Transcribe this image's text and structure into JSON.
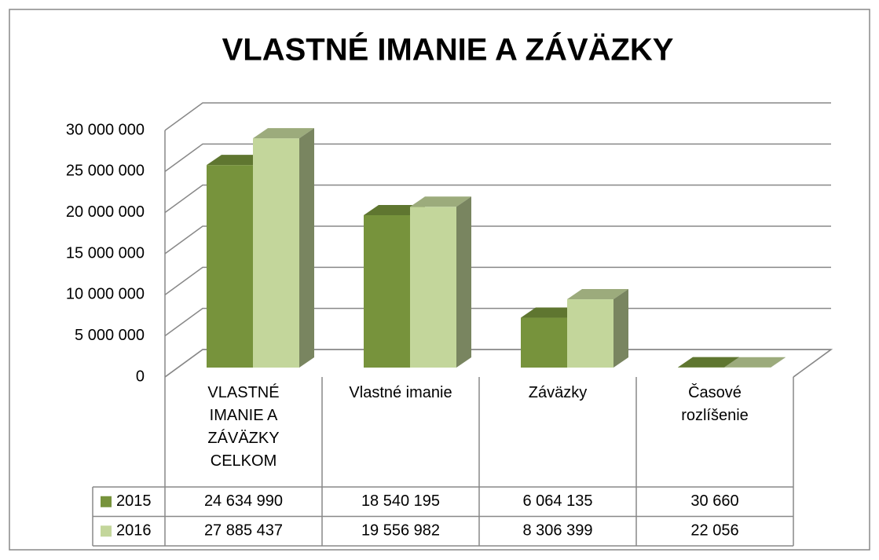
{
  "chart_data": {
    "type": "bar",
    "title": "VLASTNÉ IMANIE A ZÁVÄZKY",
    "categories": [
      "VLASTNÉ IMANIE A ZÁVÄZKY CELKOM",
      "Vlastné imanie",
      "Záväzky",
      "Časové rozlíšenie"
    ],
    "series": [
      {
        "name": "2015",
        "color": "#77933c",
        "values": [
          24634990,
          18540195,
          6064135,
          30660
        ],
        "value_labels": [
          "24 634 990",
          "18 540 195",
          "6 064 135",
          "30 660"
        ]
      },
      {
        "name": "2016",
        "color": "#c3d69b",
        "values": [
          27885437,
          19556982,
          8306399,
          22056
        ],
        "value_labels": [
          "27 885 437",
          "19 556 982",
          "8 306 399",
          "22 056"
        ]
      }
    ],
    "ylim": [
      0,
      30000000
    ],
    "yticks": [
      0,
      {
        "value": 5000000,
        "label": "5 000 000"
      },
      {
        "value": 10000000,
        "label": "10 000 000"
      },
      {
        "value": 15000000,
        "label": "15 000 000"
      },
      {
        "value": 20000000,
        "label": "20 000 000"
      },
      {
        "value": 25000000,
        "label": "25 000 000"
      },
      {
        "value": 30000000,
        "label": "30 000 000"
      }
    ],
    "grid": true
  }
}
